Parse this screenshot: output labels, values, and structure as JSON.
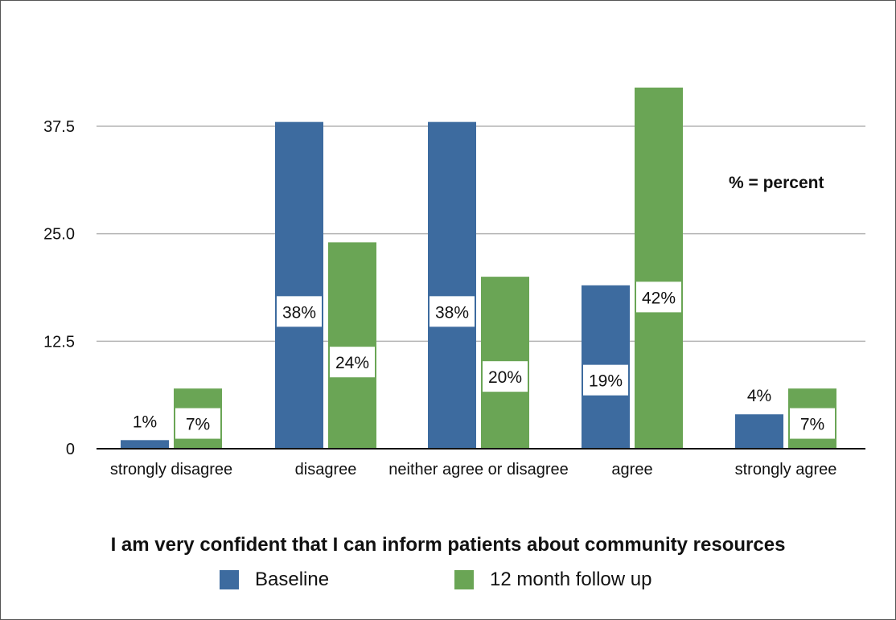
{
  "chart_data": {
    "type": "bar",
    "title": "I am very confident that I can inform patients about community resources",
    "categories": [
      "strongly disagree",
      "disagree",
      "neither agree or disagree",
      "agree",
      "strongly agree"
    ],
    "series": [
      {
        "name": "Baseline",
        "color": "#3d6b9f",
        "values": [
          1,
          38,
          38,
          19,
          4
        ],
        "labels": [
          "1%",
          "38%",
          "38%",
          "19%",
          "4%"
        ]
      },
      {
        "name": "12 month follow up",
        "color": "#6aa555",
        "values": [
          7,
          24,
          20,
          42,
          7
        ],
        "labels": [
          "7%",
          "24%",
          "20%",
          "42%",
          "7%"
        ]
      }
    ],
    "yticks": [
      "0",
      "12.5",
      "25.0",
      "37.5"
    ],
    "ytick_values": [
      0,
      12.5,
      25,
      37.5
    ],
    "ylim": [
      0,
      50
    ],
    "grid": true,
    "legend_position": "bottom",
    "annotation": "% = percent"
  }
}
